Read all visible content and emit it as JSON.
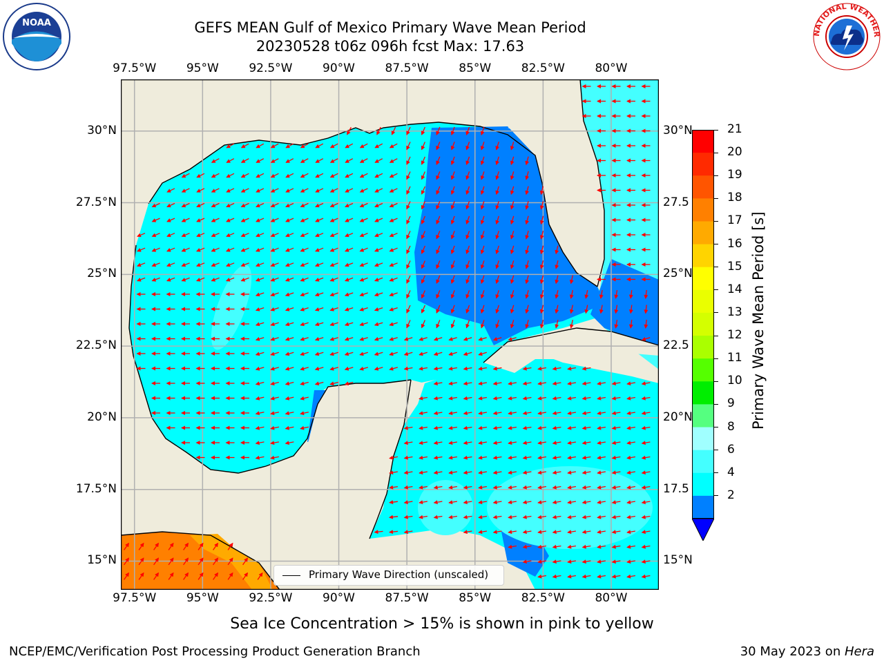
{
  "title": {
    "line1": "GEFS MEAN Gulf of Mexico Primary Wave Mean Period",
    "line2": "20230528 t06z 096h fcst   Max: 17.63"
  },
  "map": {
    "lon_labels": [
      "97.5°W",
      "95°W",
      "92.5°W",
      "90°W",
      "87.5°W",
      "85°W",
      "82.5°W",
      "80°W"
    ],
    "lat_labels": [
      "30°N",
      "27.5°N",
      "25°N",
      "22.5°N",
      "20°N",
      "17.5°N",
      "15°N"
    ],
    "lat_labels_right": [
      "30°N",
      "27.5",
      "25°N",
      "22.5",
      "20°N",
      "17.5",
      "15°N"
    ],
    "lon_range": [
      -98,
      -78.25
    ],
    "lat_range": [
      14,
      31.8
    ],
    "colors": {
      "land": "#efecdc",
      "ocean_4_6": "#00ffff",
      "ocean_6_8": "#44ffff",
      "ocean_2_4": "#0080ff",
      "arrow": "#ff0000",
      "grid": "#b0b0b0"
    },
    "legend": {
      "label": "Primary Wave Direction (unscaled)"
    }
  },
  "colorbar": {
    "title": "Primary Wave Mean Period [s]",
    "ticks": [
      "21",
      "20",
      "19",
      "18",
      "17",
      "16",
      "15",
      "14",
      "13",
      "12",
      "11",
      "10",
      "9",
      "8",
      "6",
      "4",
      "2"
    ],
    "colors": [
      "#ff0000",
      "#ff2a00",
      "#ff5500",
      "#ff8000",
      "#ffaa00",
      "#ffd400",
      "#ffff00",
      "#eaff00",
      "#d4ff00",
      "#aaff00",
      "#55ff00",
      "#00ee00",
      "#55ff80",
      "#a0ffff",
      "#44ffff",
      "#00ffff",
      "#0080ff"
    ],
    "under_color": "#0000ff"
  },
  "notes": {
    "ice": "Sea Ice Concentration > 15% is shown in pink to yellow"
  },
  "footer": {
    "left": "NCEP/EMC/Verification Post Processing Product Generation Branch",
    "right_date": "30 May 2023 on ",
    "right_machine": "Hera"
  },
  "logos": {
    "noaa": "NOAA",
    "nws": "NATIONAL WEATHER SERVICE"
  }
}
